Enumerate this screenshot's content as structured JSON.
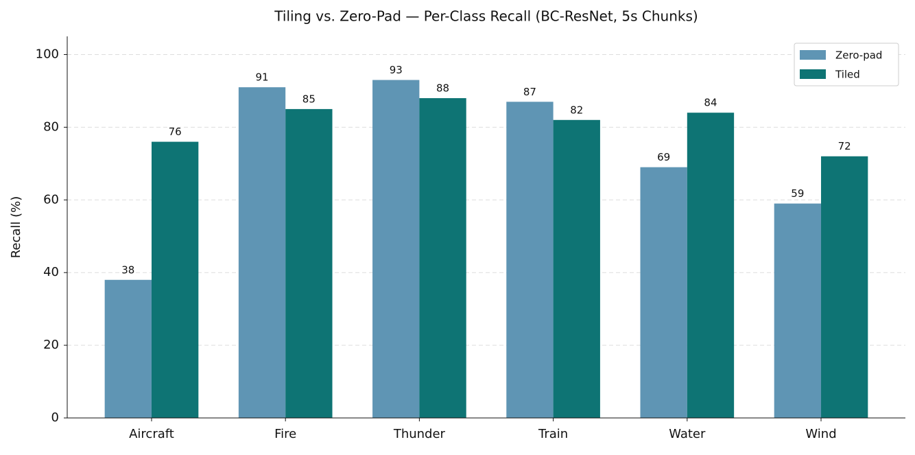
{
  "chart_data": {
    "type": "grouped_bar",
    "title": "Tiling vs. Zero-Pad — Per-Class Recall (BC-ResNet, 5s Chunks)",
    "y_label": "Recall (%)",
    "categories": [
      "Aircraft",
      "Fire",
      "Thunder",
      "Train",
      "Water",
      "Wind"
    ],
    "series": [
      {
        "name": "Zero-pad",
        "color": "#5f95b4",
        "values": [
          38,
          91,
          93,
          87,
          69,
          59
        ]
      },
      {
        "name": "Tiled",
        "color": "#0e7474",
        "values": [
          76,
          85,
          88,
          82,
          84,
          72
        ]
      }
    ],
    "ylim": [
      0,
      105
    ],
    "yticks": [
      0,
      20,
      40,
      60,
      80,
      100
    ],
    "grid": true,
    "legend": "upper-right"
  }
}
